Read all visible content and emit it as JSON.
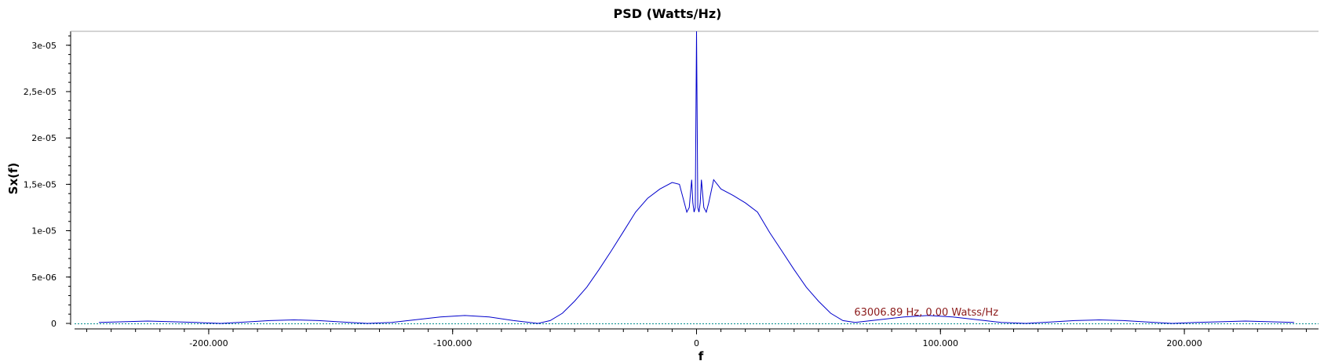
{
  "chart_data": {
    "type": "line",
    "title": "PSD (Watts/Hz)",
    "xlabel": "f",
    "ylabel": "Sx(f)",
    "xlim": [
      -255000,
      255000
    ],
    "ylim": [
      0,
      3.15e-05
    ],
    "x_ticks": [
      -200000,
      -100000,
      0,
      100000,
      200000
    ],
    "x_tick_labels": [
      "-200.000",
      "-100.000",
      "0",
      "100.000",
      "200.000"
    ],
    "y_ticks": [
      0,
      5e-06,
      1e-05,
      1.5e-05,
      2e-05,
      2.5e-05,
      3e-05
    ],
    "y_tick_labels": [
      "0",
      "5e-06",
      "1e-05",
      "1,5e-05",
      "2e-05",
      "2,5e-05",
      "3e-05"
    ],
    "grid": false,
    "colors": {
      "series": "#0000cc",
      "marker_line": "#008b8b",
      "marker_text": "#8b1a1a"
    },
    "series": [
      {
        "x": [
          -245000,
          -235000,
          -225000,
          -215000,
          -205000,
          -195000,
          -185000,
          -175000,
          -165000,
          -155000,
          -145000,
          -135000,
          -125000,
          -115000,
          -105000,
          -95000,
          -85000,
          -75000,
          -65000,
          -60000,
          -55000,
          -50000,
          -45000,
          -40000,
          -35000,
          -30000,
          -25000,
          -20000,
          -15000,
          -10000,
          -7000,
          -5000,
          -4000,
          -3000,
          -2000,
          -1500,
          -1000,
          -500,
          0,
          500,
          1000,
          1500,
          2000,
          3000,
          4000,
          5000,
          7000,
          10000,
          15000,
          20000,
          25000,
          30000,
          35000,
          40000,
          45000,
          50000,
          55000,
          60000,
          65000,
          75000,
          85000,
          95000,
          105000,
          115000,
          125000,
          135000,
          145000,
          155000,
          165000,
          175000,
          185000,
          195000,
          205000,
          215000,
          225000,
          235000,
          245000
        ],
        "values": [
          1e-07,
          1.8e-07,
          2.5e-07,
          1.8e-07,
          1e-07,
          0,
          1.5e-07,
          3e-07,
          3.8e-07,
          3e-07,
          1.5e-07,
          0,
          1e-07,
          4e-07,
          7e-07,
          8.5e-07,
          7e-07,
          3e-07,
          0,
          3e-07,
          1.1e-06,
          2.4e-06,
          3.9e-06,
          5.8e-06,
          7.8e-06,
          9.9e-06,
          1.2e-05,
          1.35e-05,
          1.45e-05,
          1.52e-05,
          1.5e-05,
          1.3e-05,
          1.2e-05,
          1.25e-05,
          1.55e-05,
          1.3e-05,
          1.2e-05,
          1.25e-05,
          3.15e-05,
          1.25e-05,
          1.2e-05,
          1.3e-05,
          1.55e-05,
          1.25e-05,
          1.2e-05,
          1.3e-05,
          1.55e-05,
          1.45e-05,
          1.38e-05,
          1.3e-05,
          1.2e-05,
          9.8e-06,
          7.8e-06,
          5.8e-06,
          3.9e-06,
          2.4e-06,
          1.1e-06,
          3e-07,
          1e-07,
          4e-07,
          7e-07,
          8.5e-07,
          7e-07,
          4e-07,
          1e-07,
          0,
          1.5e-07,
          3e-07,
          3.8e-07,
          3e-07,
          1.5e-07,
          0,
          1e-07,
          1.8e-07,
          2.5e-07,
          1.8e-07,
          1e-07
        ]
      }
    ],
    "marker": {
      "label": "63006.89 Hz, 0.00 Watss/Hz",
      "x": 63006.89,
      "y": 0
    }
  }
}
